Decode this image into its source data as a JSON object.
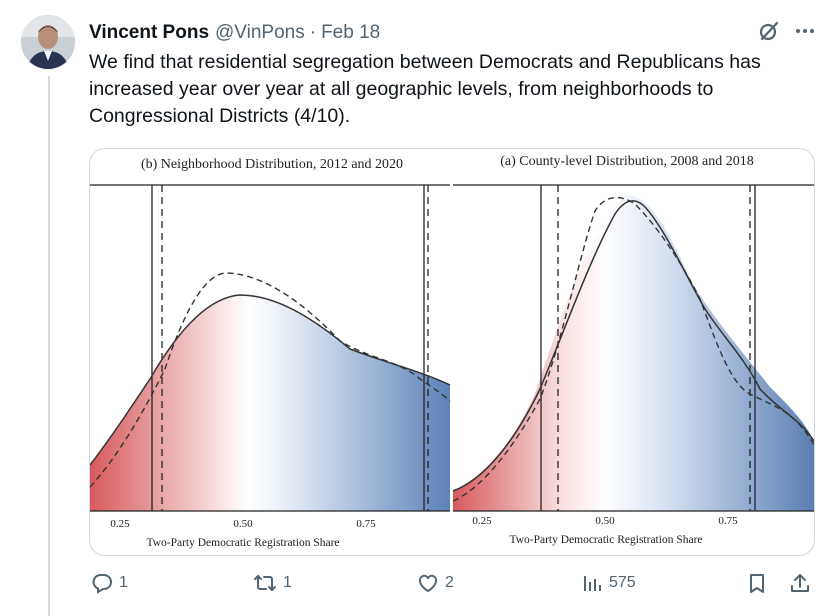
{
  "tweet": {
    "author_name": "Vincent Pons",
    "author_handle": "@VinPons",
    "separator": "·",
    "date": "Feb 18",
    "text": "We find that residential segregation between Democrats and Republicans has increased year over year at all geographic levels, from neighborhoods to Congressional Districts (4/10)."
  },
  "top_icons": [
    "grok-icon",
    "more-icon"
  ],
  "media": {
    "panels": [
      {
        "title": "(b) Neighborhood Distribution, 2012 and 2020",
        "xlabel": "Two-Party Democratic Registration Share",
        "ticks": [
          "0.25",
          "0.50",
          "0.75"
        ]
      },
      {
        "title": "(a) County-level Distribution, 2008 and 2018",
        "xlabel": "Two-Party Democratic Registration Share",
        "ticks": [
          "0.25",
          "0.50",
          "0.75"
        ]
      }
    ]
  },
  "actions": {
    "reply_count": "1",
    "repost_count": "1",
    "like_count": "2",
    "views_count": "575"
  },
  "colors": {
    "text": "#0f1419",
    "secondary": "#536471",
    "border": "#cfd9de",
    "red": "#d9595c",
    "blue": "#5a7fb5"
  }
}
